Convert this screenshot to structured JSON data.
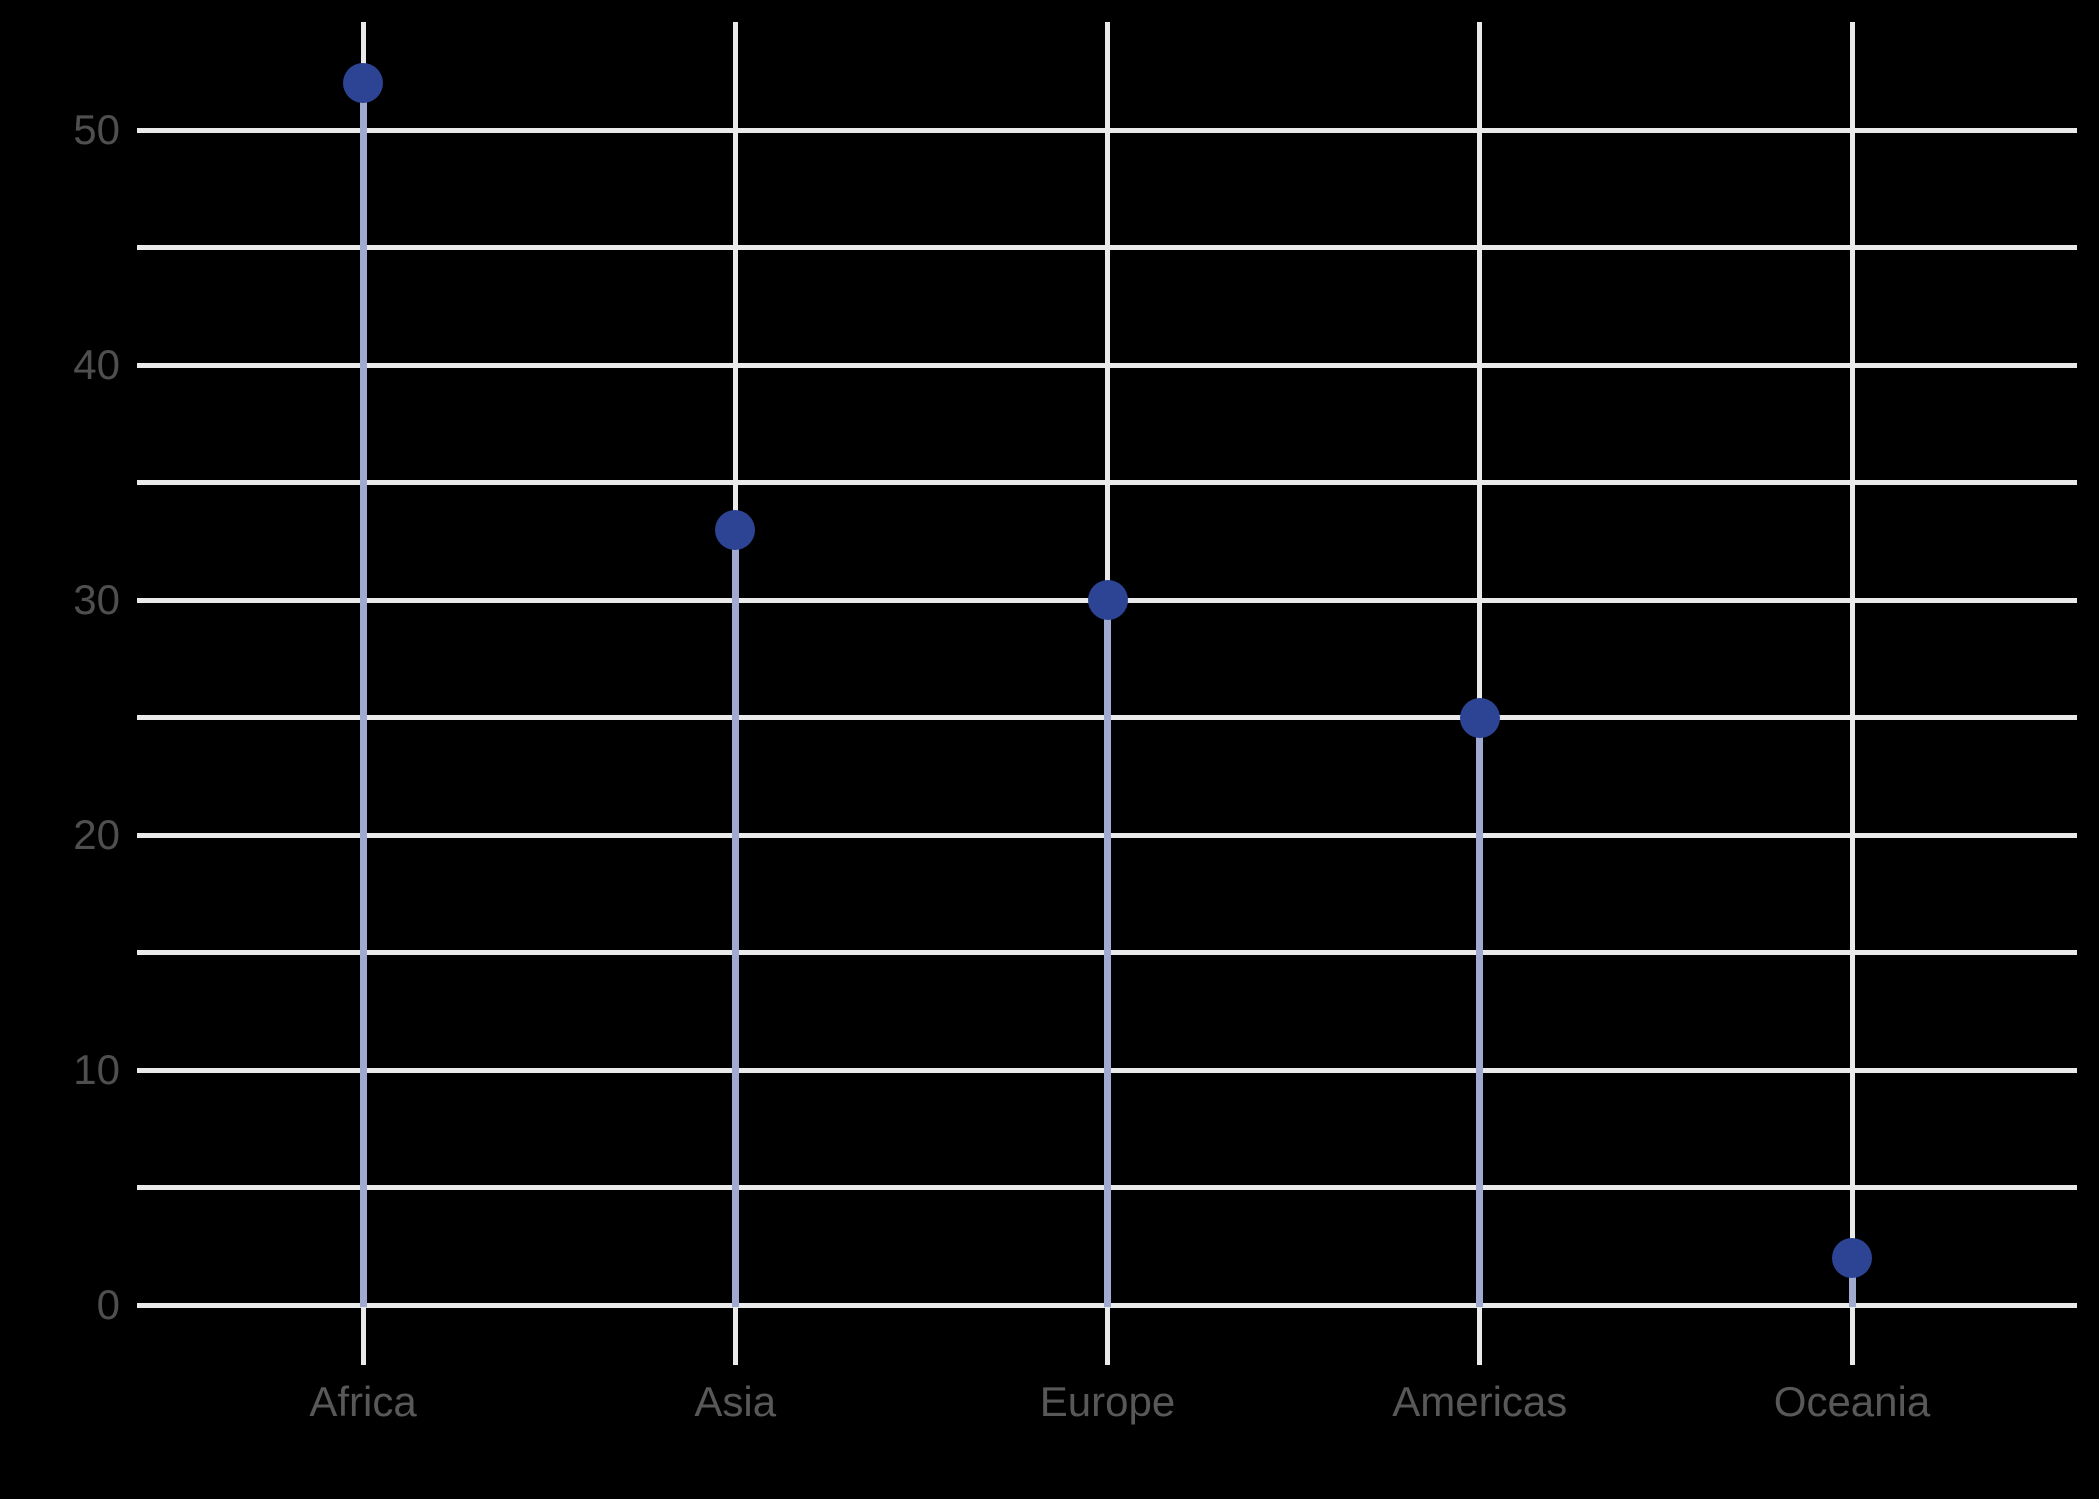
{
  "chart_data": {
    "type": "scatter",
    "variant": "lollipop",
    "title": "",
    "xlabel": "",
    "ylabel": "",
    "categories": [
      "Africa",
      "Asia",
      "Europe",
      "Americas",
      "Oceania"
    ],
    "values": [
      52,
      33,
      30,
      25,
      2
    ],
    "y_tick_labels": [
      "0",
      "10",
      "20",
      "30",
      "40",
      "50"
    ],
    "y_tick_values": [
      0,
      10,
      20,
      30,
      40,
      50
    ],
    "gridline_values": [
      0,
      5,
      10,
      15,
      20,
      25,
      30,
      35,
      40,
      45,
      50
    ],
    "ylim": [
      0,
      55
    ],
    "grid": "on",
    "legend": "none",
    "colors": {
      "background": "#000000",
      "gridline": "#eaeaea",
      "stem": "#a0a9d0",
      "dot": "#2d4394",
      "y_tick_text": "#4f4f4f",
      "x_label_text": "#585858"
    }
  }
}
